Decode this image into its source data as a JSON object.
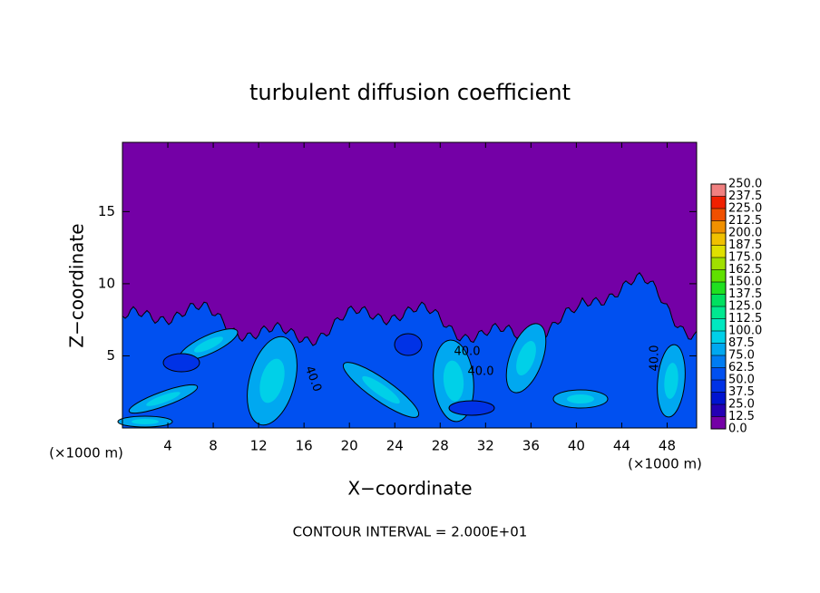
{
  "chart_data": {
    "type": "contour",
    "title": "turbulent diffusion coefficient",
    "x_label": "X−coordinate",
    "y_label": "Z−coordinate",
    "x_unit": "(×1000 m)",
    "y_unit": "(×1000 m)",
    "xlim": [
      0,
      50.6
    ],
    "xticks": [
      4,
      8,
      12,
      16,
      20,
      24,
      28,
      32,
      36,
      40,
      44,
      48
    ],
    "ylim": [
      0,
      19.8
    ],
    "yticks": [
      5,
      10,
      15
    ],
    "contour_labels": [
      "40.0",
      "40.0",
      "40.0",
      "40.0"
    ],
    "footer": "CONTOUR INTERVAL = 2.000E+01",
    "colorbar": {
      "levels": [
        {
          "value": 0,
          "label": "0.0"
        },
        {
          "value": 12.5,
          "label": "12.5"
        },
        {
          "value": 25,
          "label": "25.0"
        },
        {
          "value": 37.5,
          "label": "37.5"
        },
        {
          "value": 50,
          "label": "50.0"
        },
        {
          "value": 62.5,
          "label": "62.5"
        },
        {
          "value": 75,
          "label": "75.0"
        },
        {
          "value": 87.5,
          "label": "87.5"
        },
        {
          "value": 100,
          "label": "100.0"
        },
        {
          "value": 112.5,
          "label": "112.5"
        },
        {
          "value": 125,
          "label": "125.0"
        },
        {
          "value": 137.5,
          "label": "137.5"
        },
        {
          "value": 150,
          "label": "150.0"
        },
        {
          "value": 162.5,
          "label": "162.5"
        },
        {
          "value": 175,
          "label": "175.0"
        },
        {
          "value": 187.5,
          "label": "187.5"
        },
        {
          "value": 200,
          "label": "200.0"
        },
        {
          "value": 212.5,
          "label": "212.5"
        },
        {
          "value": 225,
          "label": "225.0"
        },
        {
          "value": 237.5,
          "label": "237.5"
        },
        {
          "value": 250,
          "label": "250.0"
        }
      ],
      "colors": [
        "#7400a6",
        "#2400b4",
        "#0014d0",
        "#0032e6",
        "#0050f0",
        "#007cf2",
        "#00a8f0",
        "#00d0e8",
        "#00e8c0",
        "#00e890",
        "#00e060",
        "#20e020",
        "#60e000",
        "#a0e000",
        "#e0e000",
        "#f0c000",
        "#f09000",
        "#f05000",
        "#f02000",
        "#f08080"
      ]
    }
  }
}
